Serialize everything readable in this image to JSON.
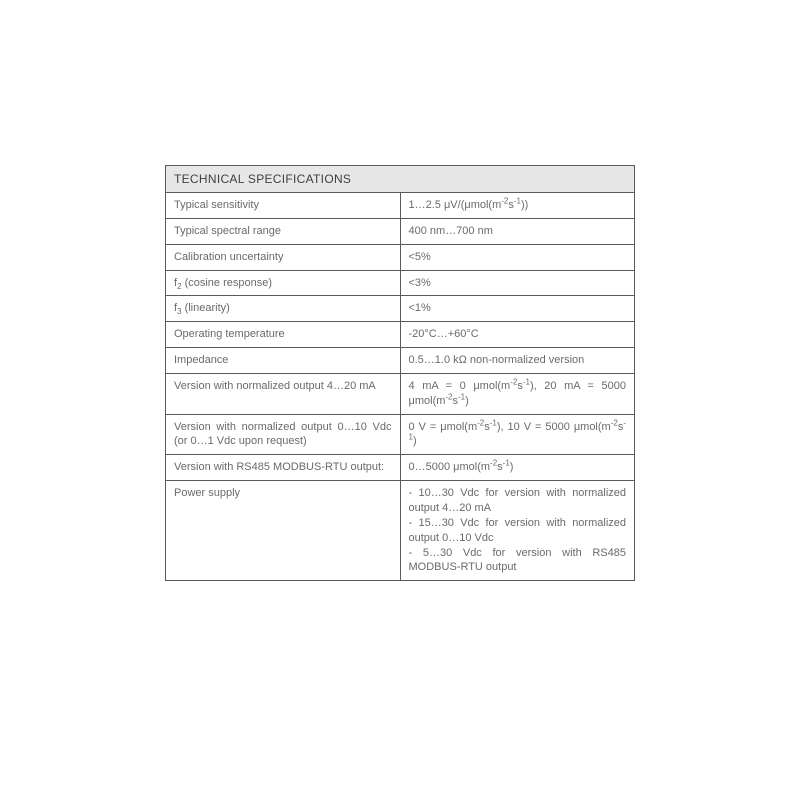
{
  "table": {
    "title": "TECHNICAL SPECIFICATIONS",
    "title_bg": "#e7e7e7",
    "border_color": "#5a5a5a",
    "text_color": "#6a6a6a",
    "header_color": "#3f3f3f",
    "font_size_header": 12,
    "font_size_cell": 11,
    "rows": [
      {
        "label": "Typical sensitivity",
        "value_html": "1…2.5 μV/(μmol(m<sup>-2</sup>s<sup>-1</sup>))"
      },
      {
        "label": "Typical spectral range",
        "value_html": "400 nm…700 nm"
      },
      {
        "label": "Calibration uncertainty",
        "value_html": "&lt;5%"
      },
      {
        "label_html": "f<sub>2</sub> (cosine response)",
        "value_html": "&lt;3%"
      },
      {
        "label_html": "f<sub>3</sub> (linearity)",
        "value_html": "&lt;1%"
      },
      {
        "label": "Operating temperature",
        "value_html": "-20°C…+60°C"
      },
      {
        "label": "Impedance",
        "value_html": "0.5…1.0 kΩ non-normalized version"
      },
      {
        "label": "Version with normalized output 4…20 mA",
        "value_html": "4 mA = 0 μmol(m<sup>-2</sup>s<sup>-1</sup>), 20 mA = 5000 μmol(m<sup>-2</sup>s<sup>-1</sup>)"
      },
      {
        "label": "Version with normalized output 0…10 Vdc (or 0…1 Vdc upon request)",
        "value_html": "0 V = μmol(m<sup>-2</sup>s<sup>-1</sup>), 10 V = 5000 μmol(m<sup>-2</sup>s<sup>-1</sup>)"
      },
      {
        "label": "Version with RS485 MODBUS-RTU output:",
        "value_html": "0…5000 μmol(m<sup>-2</sup>s<sup>-1</sup>)"
      },
      {
        "label": "Power supply",
        "value_html": "- 10…30 Vdc for version with normalized output 4…20 mA<br>- 15…30 Vdc for version with normalized output 0…10 Vdc<br>- 5…30 Vdc for version with RS485 MODBUS-RTU output"
      }
    ]
  }
}
